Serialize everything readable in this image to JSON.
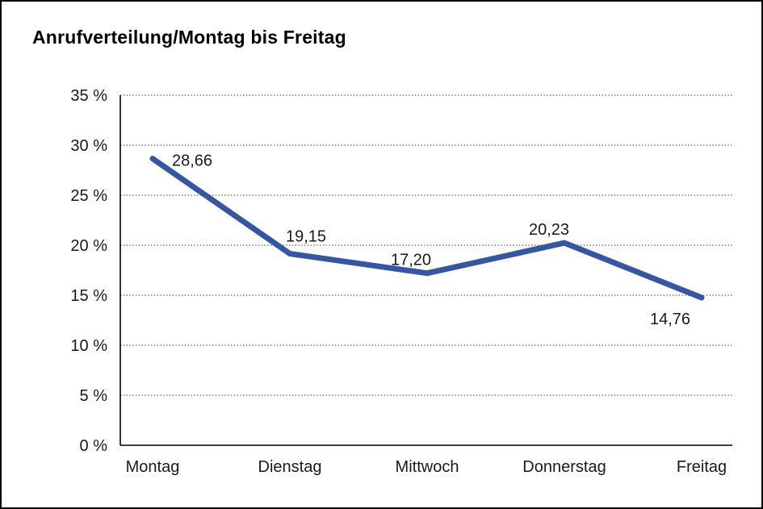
{
  "page": {
    "title": "Anrufverteilung/Montag bis Freitag"
  },
  "chart_data": {
    "type": "line",
    "title": "Anrufverteilung/Montag bis Freitag",
    "categories": [
      "Montag",
      "Dienstag",
      "Mittwoch",
      "Donnerstag",
      "Freitag"
    ],
    "series": [
      {
        "name": "Anrufverteilung",
        "values": [
          28.66,
          19.15,
          17.2,
          20.23,
          14.76
        ]
      }
    ],
    "value_labels": [
      "28,66",
      "19,15",
      "17,20",
      "20,23",
      "14,76"
    ],
    "ylabel": "",
    "xlabel": "",
    "ylim": [
      0,
      35
    ],
    "y_tick_step": 5,
    "y_ticks": [
      "35 %",
      "30 %",
      "25 %",
      "20 %",
      "15 %",
      "10 %",
      "5 %",
      "0 %"
    ],
    "y_tick_values": [
      35,
      30,
      25,
      20,
      15,
      10,
      5,
      0
    ],
    "grid": "horizontal dotted",
    "legend": "none",
    "line_color": "#3457a5",
    "axis_color": "#000000",
    "grid_color": "#777777",
    "text_color": "#1a1a1a"
  }
}
